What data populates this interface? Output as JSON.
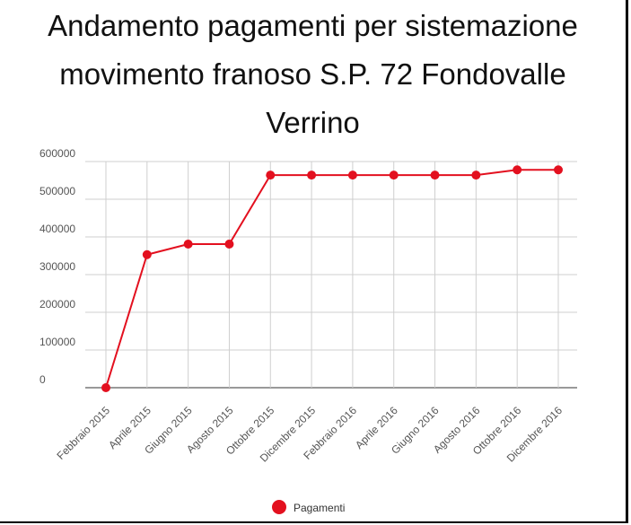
{
  "title_lines": [
    "Andamento pagamenti per sistemazione",
    "movimento franoso S.P. 72 Fondovalle",
    "Verrino"
  ],
  "chart_data": {
    "type": "line",
    "title": "Andamento pagamenti per sistemazione movimento franoso S.P. 72 Fondovalle Verrino",
    "xlabel": "",
    "ylabel": "",
    "categories": [
      "Febbraio 2015",
      "Aprile 2015",
      "Giugno 2015",
      "Agosto 2015",
      "Ottobre 2015",
      "Dicembre 2015",
      "Febbraio 2016",
      "Aprile 2016",
      "Giugno 2016",
      "Agosto 2016",
      "Ottobre 2016",
      "Dicembre 2016"
    ],
    "series": [
      {
        "name": "Pagamenti",
        "color": "#e3101f",
        "values": [
          0,
          353000,
          381000,
          381000,
          564000,
          564000,
          564000,
          564000,
          564000,
          564000,
          578000,
          578000
        ]
      }
    ],
    "ylim": [
      0,
      600000
    ],
    "yticks": [
      "0",
      "100000",
      "200000",
      "300000",
      "400000",
      "500000",
      "600000"
    ],
    "grid": true,
    "legend_position": "bottom"
  }
}
